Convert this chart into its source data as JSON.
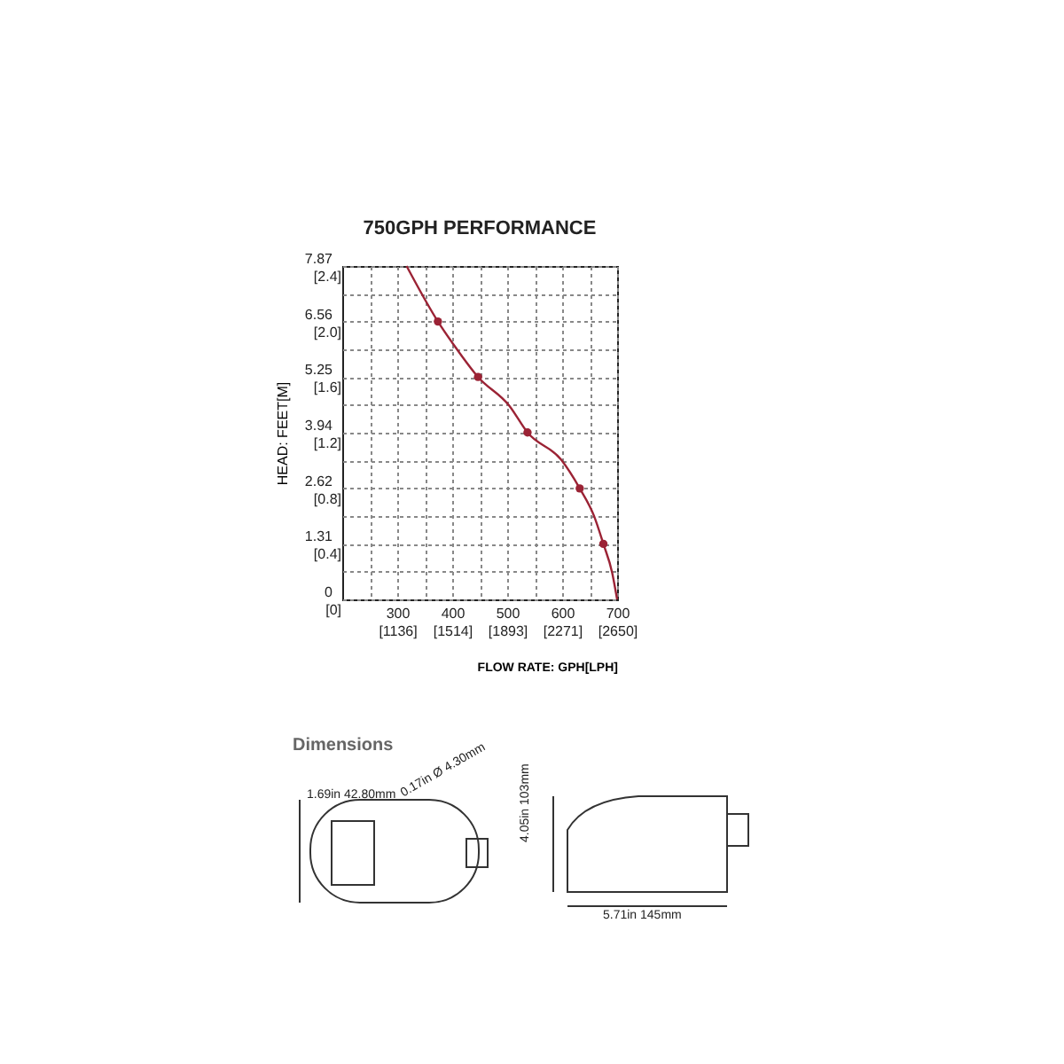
{
  "chart_data": {
    "type": "line",
    "title": "750GPH PERFORMANCE",
    "xlabel": "FLOW RATE: GPH[LPH]",
    "ylabel": "HEAD: FEET[M]",
    "xlim": [
      200,
      700
    ],
    "ylim": [
      0,
      7.87
    ],
    "xticks": [
      {
        "value": 250,
        "label": null
      },
      300,
      {
        "value": 350,
        "label": null
      },
      400,
      {
        "value": 450,
        "label": null
      },
      500,
      {
        "value": 550,
        "label": null
      },
      600,
      {
        "value": 650,
        "label": null
      },
      700
    ],
    "yticks": [
      0,
      {
        "value": 0.655,
        "label": null
      },
      1.31,
      {
        "value": 1.965,
        "label": null
      },
      2.62,
      {
        "value": 3.28,
        "label": null
      },
      3.94,
      {
        "value": 4.595,
        "label": null
      },
      5.25,
      {
        "value": 5.905,
        "label": null
      },
      6.56,
      {
        "value": 7.215,
        "label": null
      },
      7.87
    ],
    "x2lim": [
      757,
      2650
    ],
    "x2ticks": [
      {
        "value": 1136,
        "label": "[1136]"
      },
      {
        "value": 1514,
        "label": "[1514]"
      },
      {
        "value": 1893,
        "label": "[1893]"
      },
      {
        "value": 2271,
        "label": "[2271]"
      },
      {
        "value": 2650,
        "label": "[2650]"
      }
    ],
    "y2lim": [
      0,
      2.4
    ],
    "y2ticks": [
      {
        "value": 0,
        "label": "[0]"
      },
      {
        "value": 0.4,
        "label": "[0.4]"
      },
      {
        "value": 0.8,
        "label": "[0.8]"
      },
      {
        "value": 1.2,
        "label": "[1.2]"
      },
      {
        "value": 1.6,
        "label": "[1.6]"
      },
      {
        "value": 2.0,
        "label": "[2.0]"
      },
      {
        "value": 2.4,
        "label": "[2.4]"
      }
    ],
    "grid": true,
    "series": [
      {
        "type": "line",
        "color": "#9b2335",
        "x": [
          317,
          374,
          405,
          447,
          504,
          537,
          598,
          632,
          658,
          675,
          691,
          700
        ],
        "values": [
          7.87,
          6.56,
          5.97,
          5.25,
          4.57,
          3.94,
          3.3,
          2.62,
          1.97,
          1.31,
          0.63,
          0
        ]
      },
      {
        "type": "scatter",
        "color": "#9b2335",
        "marker": "circle",
        "x": [
          374,
          447,
          537,
          632,
          675
        ],
        "values": [
          6.56,
          5.25,
          3.94,
          2.62,
          1.31
        ]
      }
    ],
    "annotations": [
      "Dimensions",
      "1.69in 42.80mm",
      "0.17in Ø 4.30mm",
      "4.05in 103mm",
      "5.71in 145mm"
    ]
  }
}
